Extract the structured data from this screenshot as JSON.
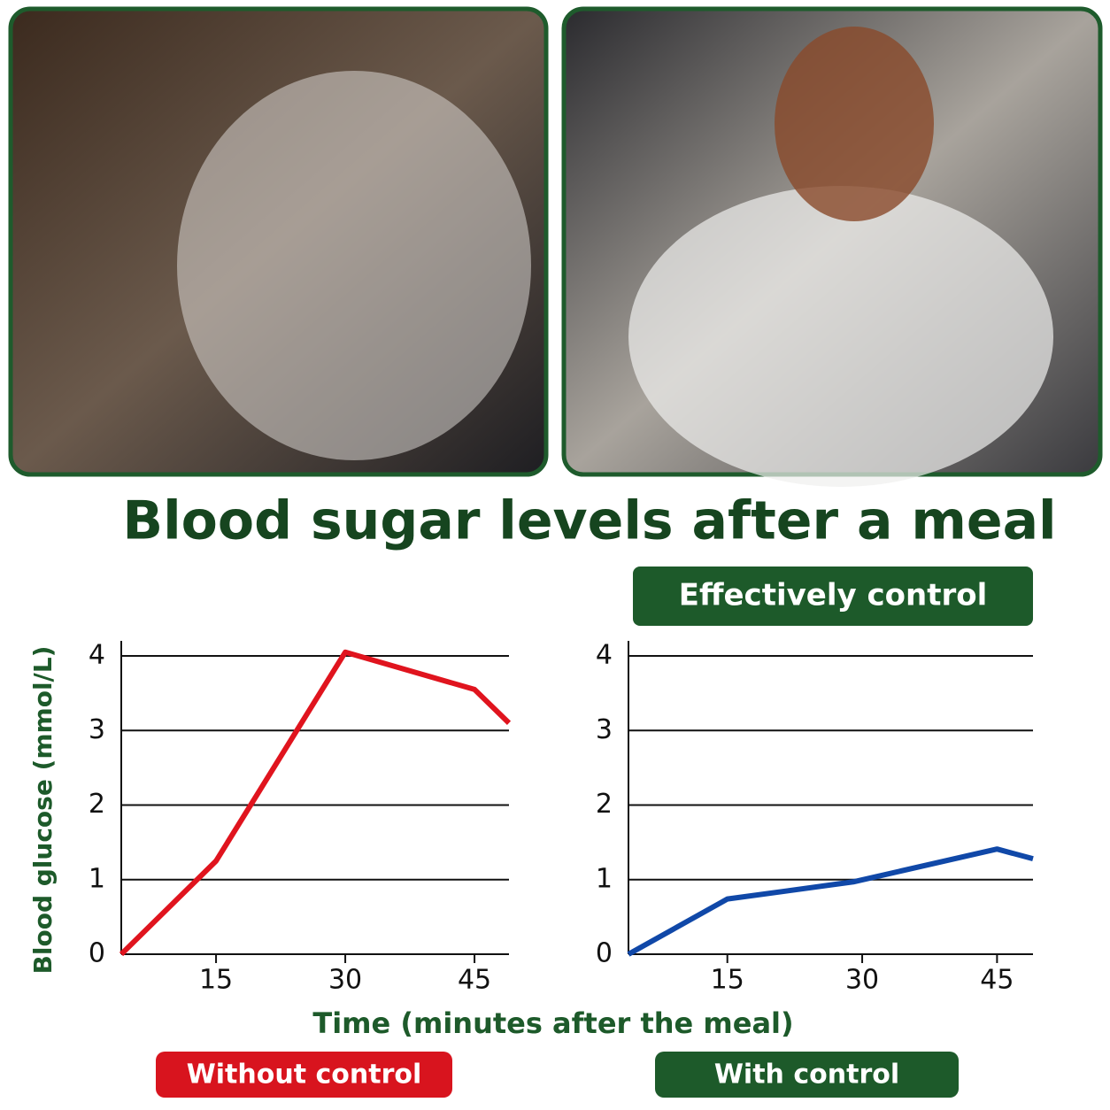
{
  "title": "Blood sugar levels after a meal",
  "badge": "Effectively control",
  "y_label": "Blood glucose (mmol/L)",
  "x_label": "Time (minutes after the meal)",
  "chart_data": [
    {
      "type": "line",
      "x": [
        4,
        15,
        30,
        45,
        49
      ],
      "series": [
        {
          "name": "Without control",
          "color": "#e0141e",
          "values": [
            0,
            1.25,
            4.05,
            3.55,
            3.1
          ]
        }
      ],
      "xlim": [
        4,
        49
      ],
      "xticks": [
        15,
        30,
        45
      ],
      "ylim": [
        0,
        4
      ],
      "yticks": [
        0,
        1,
        2,
        3,
        4
      ],
      "grid": true
    },
    {
      "type": "line",
      "x": [
        4,
        15,
        29,
        45,
        49
      ],
      "series": [
        {
          "name": "With control",
          "color": "#1048a8",
          "values": [
            0,
            0.74,
            0.97,
            1.41,
            1.28
          ]
        }
      ],
      "xlim": [
        4,
        49
      ],
      "xticks": [
        15,
        30,
        45
      ],
      "ylim": [
        0,
        4
      ],
      "yticks": [
        0,
        1,
        2,
        3,
        4
      ],
      "grid": true
    }
  ]
}
